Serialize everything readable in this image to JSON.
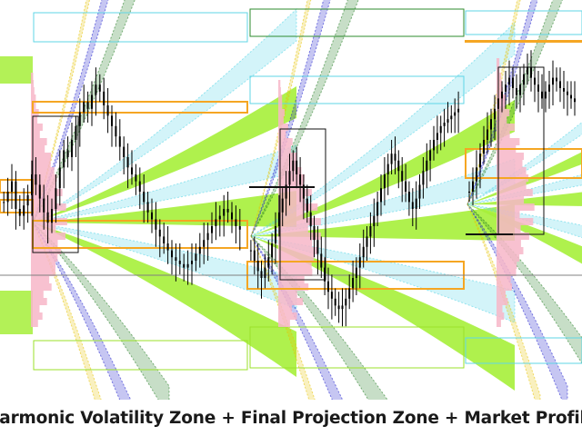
{
  "caption": "Harmonic Volatility Zone + Final Projection Zone + Market Profile",
  "chart_data": {
    "type": "candlestick",
    "title": "Harmonic Volatility Zone + Final Projection Zone + Market Profile",
    "xlabel": "",
    "ylabel": "",
    "grid": false,
    "legend": "none",
    "price_axis": {
      "min": 0,
      "max": 100
    },
    "colors": {
      "background": "#ffffff",
      "candles": "#000000",
      "volatility_zone": "#a6ef3a",
      "volatility_zone_outline": "#9be12a",
      "harmonic_band_cyan": "#4fd3e6",
      "harmonic_band_navy": "#1a1acc",
      "harmonic_band_green": "#1f7a1f",
      "harmonic_band_gold": "#e6c300",
      "projection_zone": "#f5a623",
      "market_profile": "#f7b6c8",
      "box_outline": "#111111",
      "price_line": "#808080",
      "top_box_cyan": "#5fd6e6",
      "top_box_green": "#2e8b2e"
    },
    "panels": [
      {
        "name": "panel-1",
        "candle_count": 60,
        "close": [
          52,
          55,
          58,
          50,
          48,
          51,
          54,
          60,
          57,
          53,
          49,
          46,
          50,
          56,
          62,
          67,
          65,
          70,
          74,
          78,
          81,
          79,
          83,
          86,
          84,
          80,
          77,
          74,
          71,
          68,
          65,
          62,
          60,
          58,
          55,
          52,
          49,
          47,
          44,
          42,
          40,
          38,
          36,
          35,
          34,
          33,
          34,
          35,
          37,
          39,
          41,
          43,
          45,
          47,
          48,
          50,
          49,
          47,
          45,
          44
        ],
        "profile_levels": 40
      },
      {
        "name": "panel-2",
        "candle_count": 60,
        "close": [
          38,
          35,
          32,
          30,
          33,
          36,
          40,
          45,
          49,
          53,
          57,
          61,
          64,
          60,
          57,
          53,
          49,
          45,
          41,
          37,
          33,
          29,
          26,
          24,
          22,
          21,
          22,
          24,
          27,
          30,
          33,
          36,
          39,
          42,
          45,
          48,
          52,
          56,
          60,
          63,
          66,
          64,
          61,
          58,
          55,
          52,
          50,
          53,
          57,
          61,
          64,
          67,
          70,
          72,
          74,
          75,
          76,
          77,
          78,
          79
        ],
        "profile_levels": 40
      },
      {
        "name": "panel-3",
        "candle_count": 30,
        "close": [
          55,
          58,
          62,
          66,
          70,
          73,
          76,
          79,
          82,
          84,
          86,
          88,
          85,
          83,
          86,
          89,
          91,
          88,
          86,
          84,
          82,
          84,
          86,
          88,
          87,
          85,
          84,
          83,
          82,
          81
        ],
        "profile_levels": 40
      }
    ]
  }
}
